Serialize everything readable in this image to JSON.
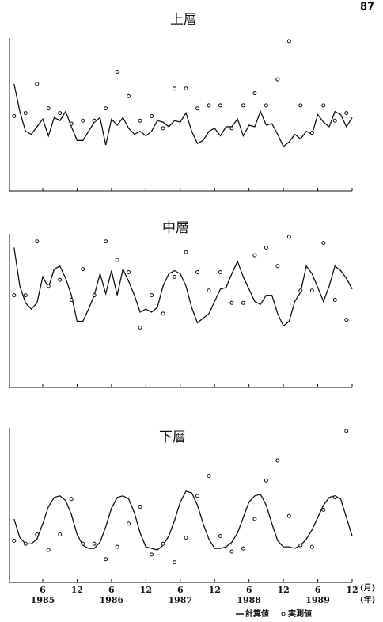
{
  "page_number": "87",
  "chart_data": [
    {
      "type": "line",
      "title": "上層",
      "xlim": [
        0.2,
        60
      ],
      "ylim": [
        0,
        100
      ],
      "xticks": [
        6,
        12,
        18,
        24,
        30,
        36,
        42,
        48,
        54,
        60
      ],
      "series": [
        {
          "type": "line",
          "color": "#111",
          "x": [
            1,
            2,
            3,
            4,
            5,
            6,
            7,
            8,
            9,
            10,
            11,
            12,
            13,
            14,
            15,
            16,
            17,
            18,
            19,
            20,
            21,
            22,
            23,
            24,
            25,
            26,
            27,
            28,
            29,
            30,
            31,
            32,
            33,
            34,
            35,
            36,
            37,
            38,
            39,
            40,
            41,
            42,
            43,
            44,
            45,
            46,
            47,
            48,
            49,
            50,
            51,
            52,
            53,
            54,
            55,
            56,
            57,
            58,
            59,
            60
          ],
          "values": [
            70,
            52,
            39,
            37,
            42,
            47,
            36,
            48,
            46,
            52,
            42,
            33,
            33,
            39,
            45,
            48,
            30,
            47,
            43,
            48,
            41,
            37,
            39,
            36,
            39,
            46,
            45,
            42,
            46,
            45,
            51,
            39,
            31,
            33,
            39,
            41,
            36,
            42,
            42,
            47,
            36,
            43,
            42,
            52,
            43,
            44,
            37,
            29,
            32,
            37,
            34,
            39,
            37,
            50,
            45,
            42,
            52,
            50,
            42,
            48
          ]
        },
        {
          "type": "scatter",
          "color": "#111",
          "x": [
            1,
            3,
            5,
            7,
            9,
            11,
            13,
            15,
            17,
            19,
            21,
            23,
            25,
            27,
            29,
            31,
            33,
            35,
            37,
            39,
            41,
            43,
            45,
            47,
            49,
            51,
            53,
            55,
            57,
            59
          ],
          "values": [
            49,
            51,
            70,
            54,
            51,
            44,
            46,
            46,
            54,
            78,
            62,
            46,
            49,
            41,
            67,
            67,
            54,
            56,
            56,
            41,
            56,
            64,
            56,
            73,
            98,
            56,
            38,
            56,
            46,
            51
          ]
        }
      ]
    },
    {
      "type": "line",
      "title": "中層",
      "xlim": [
        0.2,
        60
      ],
      "ylim": [
        0,
        100
      ],
      "xticks": [
        6,
        12,
        18,
        24,
        30,
        36,
        42,
        48,
        54,
        60
      ],
      "series": [
        {
          "type": "line",
          "color": "#111",
          "x": [
            1,
            2,
            3,
            4,
            5,
            6,
            7,
            8,
            9,
            10,
            11,
            12,
            13,
            14,
            15,
            16,
            17,
            18,
            19,
            20,
            21,
            22,
            23,
            24,
            25,
            26,
            27,
            28,
            29,
            30,
            31,
            32,
            33,
            34,
            35,
            36,
            37,
            38,
            39,
            40,
            41,
            42,
            43,
            44,
            45,
            46,
            47,
            48,
            49,
            50,
            51,
            52,
            53,
            54,
            55,
            56,
            57,
            58,
            59,
            60
          ],
          "values": [
            91,
            66,
            55,
            51,
            55,
            72,
            65,
            77,
            79,
            71,
            60,
            43,
            43,
            51,
            60,
            74,
            61,
            76,
            60,
            77,
            69,
            60,
            49,
            51,
            49,
            52,
            66,
            74,
            76,
            74,
            66,
            52,
            42,
            45,
            48,
            56,
            64,
            65,
            74,
            82,
            72,
            64,
            56,
            54,
            60,
            60,
            48,
            40,
            43,
            56,
            62,
            79,
            74,
            65,
            56,
            66,
            79,
            76,
            71,
            64
          ]
        },
        {
          "type": "scatter",
          "color": "#111",
          "x": [
            1,
            3,
            5,
            7,
            9,
            11,
            13,
            15,
            17,
            19,
            21,
            23,
            25,
            27,
            29,
            31,
            33,
            35,
            37,
            39,
            41,
            43,
            45,
            47,
            49,
            51,
            53,
            55,
            57,
            59
          ],
          "values": [
            60,
            60,
            95,
            66,
            70,
            57,
            77,
            60,
            95,
            83,
            75,
            39,
            60,
            48,
            72,
            88,
            75,
            63,
            75,
            55,
            55,
            86,
            91,
            79,
            98,
            63,
            63,
            94,
            57,
            44
          ]
        }
      ]
    },
    {
      "type": "line",
      "title": "下層",
      "xlim": [
        0.2,
        60
      ],
      "ylim": [
        0,
        100
      ],
      "xticks": [
        {
          "value": 6,
          "label": "6"
        },
        {
          "value": 12,
          "label": "12"
        },
        {
          "value": 18,
          "label": "6"
        },
        {
          "value": 24,
          "label": "12"
        },
        {
          "value": 30,
          "label": "6"
        },
        {
          "value": 36,
          "label": "12"
        },
        {
          "value": 42,
          "label": "6"
        },
        {
          "value": 48,
          "label": "12"
        },
        {
          "value": 54,
          "label": "6"
        },
        {
          "value": 60,
          "label": "12"
        }
      ],
      "year_labels": [
        {
          "value": 6,
          "label": "1985"
        },
        {
          "value": 18,
          "label": "1986"
        },
        {
          "value": 30,
          "label": "1987"
        },
        {
          "value": 42,
          "label": "1988"
        },
        {
          "value": 54,
          "label": "1989"
        }
      ],
      "xlabel": "(月)",
      "xlabel2": "(年)",
      "series": [
        {
          "name": "計算値",
          "type": "line",
          "color": "#111",
          "x": [
            1,
            2,
            3,
            4,
            5,
            6,
            7,
            8,
            9,
            10,
            11,
            12,
            13,
            14,
            15,
            16,
            17,
            18,
            19,
            20,
            21,
            22,
            23,
            24,
            25,
            26,
            27,
            28,
            29,
            30,
            31,
            32,
            33,
            34,
            35,
            36,
            37,
            38,
            39,
            40,
            41,
            42,
            43,
            44,
            45,
            46,
            47,
            48,
            49,
            50,
            51,
            52,
            53,
            54,
            55,
            56,
            57,
            58,
            59,
            60
          ],
          "values": [
            41,
            29,
            25,
            25,
            28,
            38,
            49,
            55,
            56,
            53,
            44,
            31,
            24,
            22,
            22,
            26,
            36,
            48,
            55,
            56,
            54,
            45,
            32,
            23,
            22,
            21,
            24,
            30,
            40,
            52,
            59,
            58,
            50,
            38,
            28,
            22,
            22,
            23,
            26,
            32,
            42,
            52,
            56,
            57,
            50,
            38,
            27,
            23,
            23,
            22,
            24,
            28,
            34,
            42,
            50,
            55,
            56,
            54,
            42,
            30
          ]
        },
        {
          "name": "実測値",
          "type": "scatter",
          "color": "#111",
          "x": [
            1,
            3,
            5,
            7,
            9,
            11,
            13,
            15,
            17,
            19,
            21,
            23,
            25,
            27,
            29,
            31,
            33,
            35,
            37,
            39,
            41,
            43,
            45,
            47,
            49,
            51,
            53,
            55,
            57,
            59
          ],
          "values": [
            27,
            25,
            31,
            21,
            31,
            54,
            25,
            25,
            15,
            23,
            38,
            49,
            18,
            25,
            13,
            29,
            56,
            69,
            30,
            20,
            22,
            41,
            66,
            79,
            43,
            24,
            23,
            47,
            55,
            98
          ]
        }
      ]
    }
  ]
}
